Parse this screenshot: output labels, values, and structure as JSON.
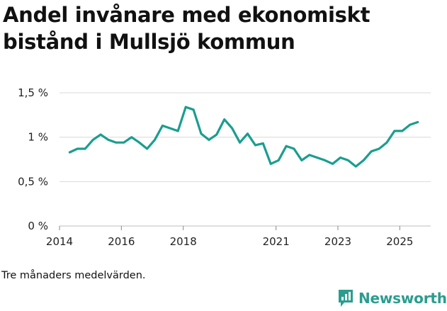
{
  "title": "Andel invånare med ekonomiskt bistånd i Mullsjö kommun",
  "footnote": "Tre månaders medelvärden.",
  "brand": {
    "name": "Newsworthy",
    "icon": "bar-chart-icon",
    "color": "#2b9d8f"
  },
  "colors": {
    "line": "#1a9e8f",
    "grid": "#d9d9d9",
    "text": "#222222"
  },
  "chart_data": {
    "type": "line",
    "title": "Andel invånare med ekonomiskt bistånd i Mullsjö kommun",
    "xlabel": "",
    "ylabel": "",
    "xlim": [
      2014.0,
      2026.0
    ],
    "ylim": [
      0,
      1.5
    ],
    "yticks": [
      {
        "value": 0,
        "label": "0 %"
      },
      {
        "value": 0.5,
        "label": "0,5 %"
      },
      {
        "value": 1.0,
        "label": "1 %"
      },
      {
        "value": 1.5,
        "label": "1,5 %"
      }
    ],
    "xticks": [
      {
        "value": 2014.0,
        "label": "2014"
      },
      {
        "value": 2016.0,
        "label": "2016"
      },
      {
        "value": 2018.0,
        "label": "2018"
      },
      {
        "value": 2021.0,
        "label": "2021"
      },
      {
        "value": 2023.0,
        "label": "2023"
      },
      {
        "value": 2025.0,
        "label": "2025"
      }
    ],
    "series": [
      {
        "name": "Andel invånare med ekonomiskt bistånd",
        "x": [
          2014.33,
          2014.58,
          2014.83,
          2015.08,
          2015.33,
          2015.58,
          2015.83,
          2016.08,
          2016.33,
          2016.58,
          2016.83,
          2017.08,
          2017.33,
          2017.58,
          2017.83,
          2018.08,
          2018.33,
          2018.58,
          2018.83,
          2019.08,
          2019.33,
          2019.58,
          2019.83,
          2020.08,
          2020.33,
          2020.58,
          2020.83,
          2021.08,
          2021.33,
          2021.58,
          2021.83,
          2022.08,
          2022.33,
          2022.58,
          2022.83,
          2023.08,
          2023.33,
          2023.58,
          2023.83,
          2024.08,
          2024.33,
          2024.58,
          2024.83,
          2025.08,
          2025.33,
          2025.58
        ],
        "values": [
          0.83,
          0.87,
          0.87,
          0.97,
          1.03,
          0.97,
          0.94,
          0.94,
          1.0,
          0.94,
          0.87,
          0.97,
          1.13,
          1.1,
          1.07,
          1.34,
          1.31,
          1.04,
          0.97,
          1.03,
          1.2,
          1.1,
          0.94,
          1.04,
          0.91,
          0.93,
          0.7,
          0.74,
          0.9,
          0.87,
          0.74,
          0.8,
          0.77,
          0.74,
          0.7,
          0.77,
          0.74,
          0.67,
          0.74,
          0.84,
          0.87,
          0.94,
          1.07,
          1.07,
          1.14,
          1.17
        ]
      }
    ]
  }
}
